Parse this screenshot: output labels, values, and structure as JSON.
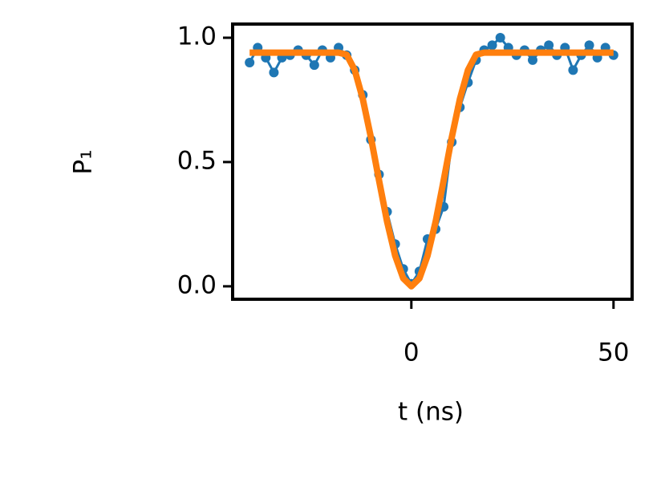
{
  "chart_data": {
    "type": "line",
    "x_label": "t (ns)",
    "y_label": "P₁",
    "x": [
      -40,
      -38,
      -36,
      -34,
      -32,
      -30,
      -28,
      -26,
      -24,
      -22,
      -20,
      -18,
      -16,
      -14,
      -12,
      -10,
      -8,
      -6,
      -4,
      -2,
      0,
      2,
      4,
      6,
      8,
      10,
      12,
      14,
      16,
      18,
      20,
      22,
      24,
      26,
      28,
      30,
      32,
      34,
      36,
      38,
      40,
      42,
      44,
      46,
      48,
      50
    ],
    "series": [
      {
        "color": "#1f77b4",
        "marker": true,
        "values": [
          0.9,
          0.96,
          0.92,
          0.86,
          0.92,
          0.93,
          0.95,
          0.93,
          0.89,
          0.95,
          0.92,
          0.96,
          0.93,
          0.87,
          0.77,
          0.59,
          0.45,
          0.3,
          0.17,
          0.07,
          0.01,
          0.06,
          0.19,
          0.23,
          0.32,
          0.58,
          0.72,
          0.82,
          0.91,
          0.95,
          0.97,
          1.0,
          0.96,
          0.93,
          0.95,
          0.91,
          0.95,
          0.97,
          0.93,
          0.96,
          0.87,
          0.93,
          0.97,
          0.92,
          0.96,
          0.93
        ]
      },
      {
        "color": "#ff7f0e",
        "marker": false,
        "values": [
          0.94,
          0.94,
          0.94,
          0.94,
          0.94,
          0.94,
          0.94,
          0.94,
          0.94,
          0.94,
          0.94,
          0.94,
          0.932,
          0.87,
          0.753,
          0.599,
          0.427,
          0.26,
          0.123,
          0.032,
          0,
          0.032,
          0.123,
          0.26,
          0.427,
          0.599,
          0.753,
          0.87,
          0.932,
          0.94,
          0.94,
          0.94,
          0.94,
          0.94,
          0.94,
          0.94,
          0.94,
          0.94,
          0.94,
          0.94,
          0.94,
          0.94,
          0.94,
          0.94,
          0.94,
          0.94
        ]
      }
    ],
    "xlim": [
      -44.2,
      54.6
    ],
    "ylim": [
      -0.052,
      1.055
    ],
    "xticks": [
      0,
      50
    ],
    "yticks": [
      {
        "value": 0,
        "label": "0.0"
      },
      {
        "value": 0.5,
        "label": "0.5"
      },
      {
        "value": 1,
        "label": "1.0"
      }
    ]
  }
}
